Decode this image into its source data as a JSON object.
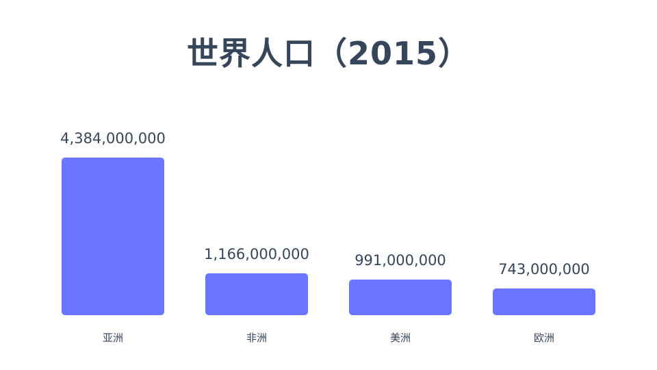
{
  "chart_data": {
    "type": "bar",
    "title": "世界人口（2015）",
    "categories": [
      "亚洲",
      "非洲",
      "美洲",
      "欧洲"
    ],
    "values": [
      4384000000,
      1166000000,
      991000000,
      743000000
    ],
    "value_labels": [
      "4,384,000,000",
      "1,166,000,000",
      "991,000,000",
      "743,000,000"
    ],
    "bar_color": "#6a76ff",
    "text_color": "#35455a",
    "grid": false,
    "legend": "none"
  }
}
